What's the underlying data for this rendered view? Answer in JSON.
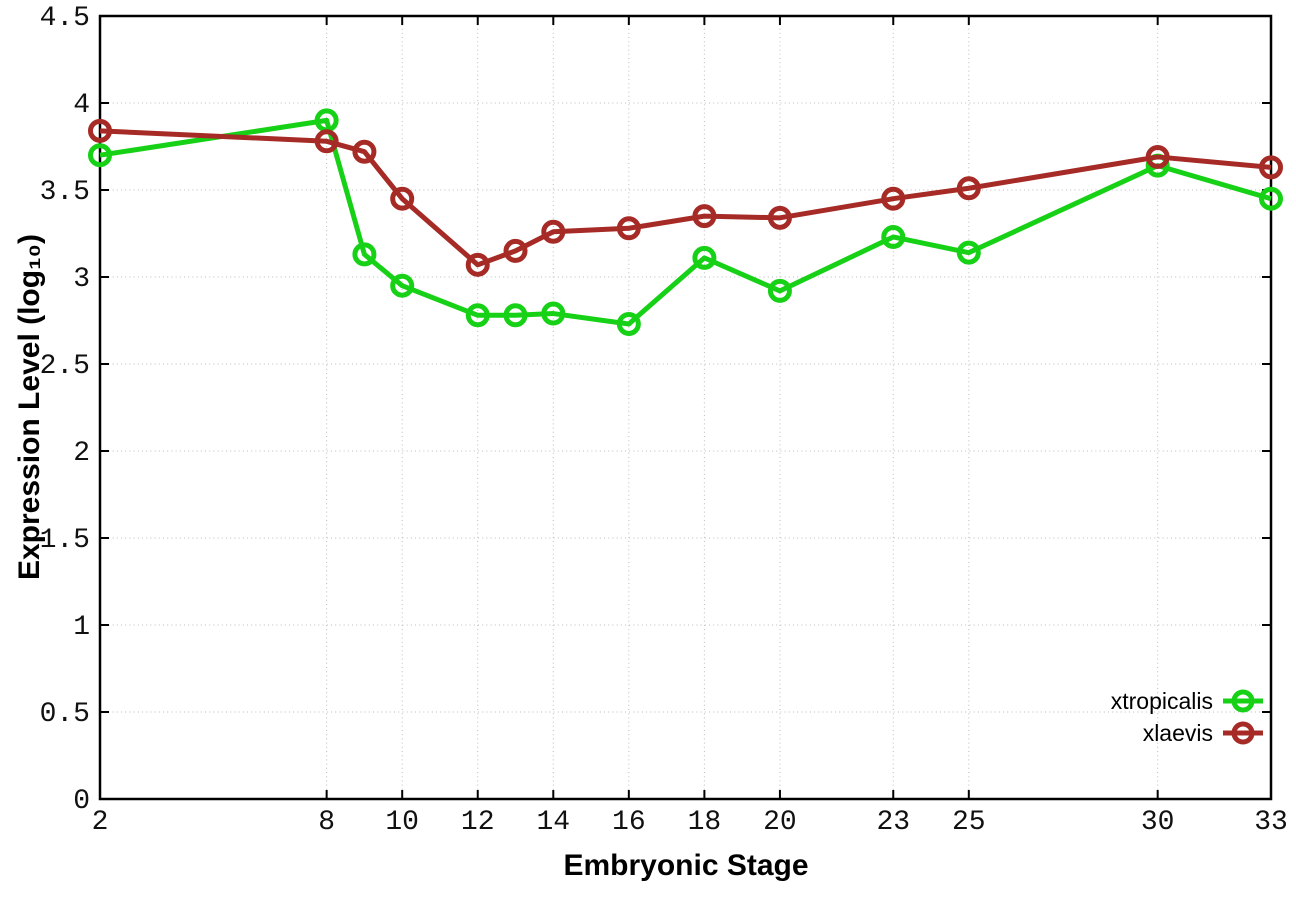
{
  "chart_data": {
    "type": "line",
    "title": "",
    "xlabel": "Embryonic Stage",
    "ylabel": "Expression Level (log₁₀)",
    "xlim": [
      2,
      33
    ],
    "ylim": [
      0,
      4.5
    ],
    "grid": "dotted",
    "legend_position": "bottom-right",
    "background_color": "#ffffff",
    "axis_color": "#000000",
    "grid_color": "#bbbbbb",
    "x": [
      2,
      8,
      9,
      10,
      12,
      13,
      14,
      16,
      18,
      20,
      23,
      25,
      30,
      33
    ],
    "x_tick_values": [
      2,
      8,
      10,
      12,
      14,
      16,
      18,
      20,
      23,
      25,
      30,
      33
    ],
    "x_tick_labels": [
      "2",
      "8",
      "10",
      "12",
      "14",
      "16",
      "18",
      "20",
      "23",
      "25",
      "30",
      "33"
    ],
    "y_tick_values": [
      0,
      0.5,
      1,
      1.5,
      2,
      2.5,
      3,
      3.5,
      4,
      4.5
    ],
    "y_tick_labels": [
      "0",
      "0.5",
      "1",
      "1.5",
      "2",
      "2.5",
      "3",
      "3.5",
      "4",
      "4.5"
    ],
    "series": [
      {
        "name": "xtropicalis",
        "color": "#17d117",
        "marker": "open-circle",
        "values": [
          3.7,
          3.9,
          3.13,
          2.95,
          2.78,
          2.78,
          2.79,
          2.73,
          3.11,
          2.92,
          3.23,
          3.14,
          3.64,
          3.45
        ]
      },
      {
        "name": "xlaevis",
        "color": "#a62b26",
        "marker": "open-circle",
        "values": [
          3.84,
          3.78,
          3.72,
          3.45,
          3.07,
          3.15,
          3.26,
          3.28,
          3.35,
          3.34,
          3.45,
          3.51,
          3.69,
          3.63
        ]
      }
    ]
  }
}
